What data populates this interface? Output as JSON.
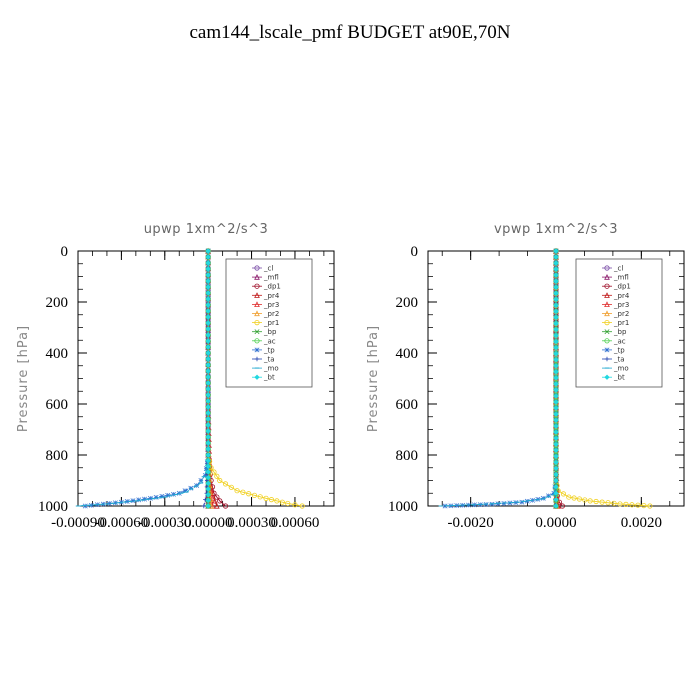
{
  "title": "cam144_lscale_pmf  BUDGET at90E,70N",
  "chart_data": [
    {
      "type": "line",
      "title": "upwp   1xm^2/s^3",
      "ylabel": "Pressure  [hPa]",
      "xlim": [
        -0.0009,
        0.00087
      ],
      "ylim": [
        1000,
        0
      ],
      "xticks": [
        "-0.00090",
        "-0.00060",
        "-0.00030",
        "0.00000",
        "0.00030",
        "0.00060"
      ],
      "xtick_values": [
        -0.0009,
        -0.0006,
        -0.0003,
        0,
        0.0003,
        0.0006
      ],
      "yticks": [
        "0",
        "200",
        "400",
        "600",
        "800",
        "1000"
      ],
      "ytick_values": [
        0,
        200,
        400,
        600,
        800,
        1000
      ],
      "series": [
        {
          "name": "_cl",
          "color": "#7b4fa8",
          "x": [
            0,
            0,
            0,
            0,
            0,
            0,
            0,
            0
          ],
          "y": [
            0,
            200,
            400,
            600,
            800,
            900,
            960,
            1000
          ]
        },
        {
          "name": "_mfl",
          "color": "#8b1a6b",
          "x": [
            0,
            0,
            0,
            0,
            0,
            0,
            0,
            0
          ],
          "y": [
            0,
            200,
            400,
            600,
            800,
            900,
            960,
            1000
          ]
        },
        {
          "name": "_dp1",
          "color": "#a0102a",
          "x": [
            0,
            0,
            0,
            2e-05,
            4e-05,
            8e-05,
            0.00012
          ],
          "y": [
            0,
            400,
            800,
            900,
            950,
            980,
            1000
          ]
        },
        {
          "name": "_pr4",
          "color": "#c01818",
          "x": [
            0,
            0,
            1e-05,
            3e-05,
            6e-05
          ],
          "y": [
            0,
            600,
            900,
            960,
            1000
          ]
        },
        {
          "name": "_pr3",
          "color": "#e03030",
          "x": [
            0,
            0,
            1e-05,
            2e-05,
            3e-05
          ],
          "y": [
            0,
            600,
            900,
            960,
            1000
          ]
        },
        {
          "name": "_pr2",
          "color": "#f0a030",
          "x": [
            0,
            0,
            1e-05,
            2e-05
          ],
          "y": [
            0,
            700,
            920,
            1000
          ]
        },
        {
          "name": "_pr1",
          "color": "#f0d020",
          "x": [
            0,
            0,
            2e-05,
            8e-05,
            0.0002,
            0.0004,
            0.00055,
            0.00065
          ],
          "y": [
            0,
            800,
            850,
            900,
            940,
            970,
            990,
            1000
          ]
        },
        {
          "name": "_bp",
          "color": "#30a030",
          "x": [
            0,
            0,
            0
          ],
          "y": [
            0,
            800,
            1000
          ]
        },
        {
          "name": "_ac",
          "color": "#50d050",
          "x": [
            0,
            0,
            0
          ],
          "y": [
            0,
            800,
            1000
          ]
        },
        {
          "name": "_tp",
          "color": "#3070d0",
          "x": [
            0,
            0,
            -2e-05,
            -8e-05,
            -0.0002,
            -0.0004,
            -0.0006,
            -0.00085
          ],
          "y": [
            0,
            800,
            880,
            920,
            950,
            970,
            985,
            1000
          ]
        },
        {
          "name": "_ta",
          "color": "#2040b0",
          "x": [
            0,
            0,
            -1e-05,
            -3e-05
          ],
          "y": [
            0,
            800,
            950,
            1000
          ]
        },
        {
          "name": "_mo",
          "color": "#20a8d0",
          "x": [
            0,
            0,
            -1e-05,
            -5e-05,
            -0.00015,
            -0.0003,
            -0.0005,
            -0.0007,
            -0.0009
          ],
          "y": [
            0,
            800,
            860,
            910,
            945,
            965,
            980,
            992,
            1000
          ]
        },
        {
          "name": "_bt",
          "color": "#20d8e0",
          "x": [
            0,
            0,
            0
          ],
          "y": [
            0,
            800,
            1000
          ]
        }
      ]
    },
    {
      "type": "line",
      "title": "vpwp   1xm^2/s^3",
      "ylabel": "Pressure  [hPa]",
      "xlim": [
        -0.003,
        0.003
      ],
      "ylim": [
        1000,
        0
      ],
      "xticks": [
        "-0.0020",
        "0.0000",
        "0.0020"
      ],
      "xtick_values": [
        -0.002,
        0,
        0.002
      ],
      "yticks": [
        "0",
        "200",
        "400",
        "600",
        "800",
        "1000"
      ],
      "ytick_values": [
        0,
        200,
        400,
        600,
        800,
        1000
      ],
      "series": [
        {
          "name": "_cl",
          "color": "#7b4fa8",
          "x": [
            0,
            0,
            0,
            0,
            0,
            0,
            0
          ],
          "y": [
            0,
            200,
            400,
            600,
            800,
            900,
            1000
          ]
        },
        {
          "name": "_mfl",
          "color": "#8b1a6b",
          "x": [
            0,
            0,
            0,
            0,
            0,
            0,
            0
          ],
          "y": [
            0,
            200,
            400,
            600,
            800,
            900,
            1000
          ]
        },
        {
          "name": "_dp1",
          "color": "#a0102a",
          "x": [
            0,
            0,
            0,
            3e-05,
            8e-05,
            0.00015
          ],
          "y": [
            0,
            600,
            900,
            960,
            985,
            1000
          ]
        },
        {
          "name": "_pr4",
          "color": "#c01818",
          "x": [
            0,
            0,
            2e-05,
            5e-05
          ],
          "y": [
            0,
            800,
            960,
            1000
          ]
        },
        {
          "name": "_pr3",
          "color": "#e03030",
          "x": [
            0,
            0,
            1e-05,
            3e-05
          ],
          "y": [
            0,
            800,
            960,
            1000
          ]
        },
        {
          "name": "_pr2",
          "color": "#f0a030",
          "x": [
            0,
            0,
            1e-05
          ],
          "y": [
            0,
            900,
            1000
          ]
        },
        {
          "name": "_pr1",
          "color": "#f0d020",
          "x": [
            0,
            0,
            5e-05,
            0.0003,
            0.0008,
            0.0015,
            0.0022
          ],
          "y": [
            0,
            900,
            940,
            965,
            980,
            992,
            1000
          ]
        },
        {
          "name": "_bp",
          "color": "#30a030",
          "x": [
            0,
            0,
            0
          ],
          "y": [
            0,
            800,
            1000
          ]
        },
        {
          "name": "_ac",
          "color": "#50d050",
          "x": [
            0,
            0,
            0
          ],
          "y": [
            0,
            800,
            1000
          ]
        },
        {
          "name": "_tp",
          "color": "#3070d0",
          "x": [
            0,
            0,
            -5e-05,
            -0.0003,
            -0.0008,
            -0.0015,
            -0.0026
          ],
          "y": [
            0,
            900,
            950,
            970,
            985,
            993,
            1000
          ]
        },
        {
          "name": "_ta",
          "color": "#2040b0",
          "x": [
            0,
            0,
            -2e-05
          ],
          "y": [
            0,
            900,
            1000
          ]
        },
        {
          "name": "_mo",
          "color": "#20a8d0",
          "x": [
            0,
            0,
            -5e-05,
            -0.0003,
            -0.0009,
            -0.0018,
            -0.0027
          ],
          "y": [
            0,
            900,
            955,
            972,
            985,
            994,
            1000
          ]
        },
        {
          "name": "_bt",
          "color": "#20d8e0",
          "x": [
            0,
            0,
            0
          ],
          "y": [
            0,
            900,
            1000
          ]
        }
      ]
    }
  ]
}
